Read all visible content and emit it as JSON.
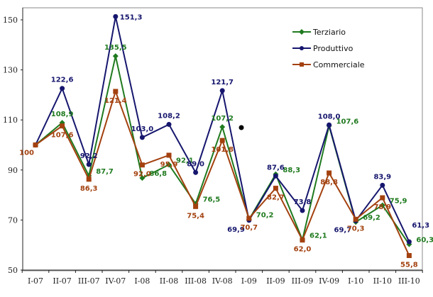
{
  "chart_data": {
    "type": "line",
    "title": "",
    "xlabel": "",
    "ylabel": "",
    "categories": [
      "I-07",
      "II-07",
      "III-07",
      "IV-07",
      "I-08",
      "II-08",
      "III-08",
      "IV-08",
      "I-09",
      "II-09",
      "III-09",
      "IV-09",
      "I-10",
      "II-10",
      "III-10"
    ],
    "ylim": [
      50,
      155
    ],
    "yticks": [
      50,
      70,
      90,
      110,
      130,
      150
    ],
    "grid": false,
    "legend_position": "top-right",
    "series": [
      {
        "name": "Terziario",
        "color": "#1f7a1f",
        "marker": "diamond",
        "values": [
          100,
          108.9,
          87.7,
          135.5,
          86.8,
          92.1,
          76.5,
          107.2,
          70.2,
          88.3,
          62.1,
          107.6,
          69.2,
          75.9,
          60.3
        ],
        "labels": [
          "",
          "108,9",
          "87,7",
          "135,5",
          "86,8",
          "92,1",
          "76,5",
          "107,2",
          "70,2",
          "88,3",
          "62,1",
          "107,6",
          "69,2",
          "75,9",
          "60,3"
        ]
      },
      {
        "name": "Produttivo",
        "color": "#16166e",
        "marker": "circle",
        "values": [
          100,
          122.6,
          92.2,
          151.3,
          103.0,
          108.2,
          89.0,
          121.7,
          69.9,
          87.6,
          73.8,
          108.0,
          69.7,
          83.9,
          61.3
        ],
        "labels": [
          "",
          "122,6",
          "92,2",
          "151,3",
          "103,0",
          "108,2",
          "89,0",
          "121,7",
          "69,9",
          "87,6",
          "73,8",
          "108,0",
          "69,7",
          "83,9",
          "61,3"
        ]
      },
      {
        "name": "Commerciale",
        "color": "#a3410f",
        "marker": "square",
        "values": [
          100,
          107.6,
          86.3,
          121.4,
          92.0,
          95.9,
          75.4,
          101.8,
          70.7,
          82.7,
          62.0,
          88.8,
          70.3,
          78.9,
          55.8
        ],
        "labels": [
          "100",
          "107,6",
          "86,3",
          "121,4",
          "92,0",
          "95,9",
          "75,4",
          "101,8",
          "70,7",
          "82,7",
          "62,0",
          "88,8",
          "70,3",
          "78,9",
          "55,8"
        ]
      }
    ]
  }
}
